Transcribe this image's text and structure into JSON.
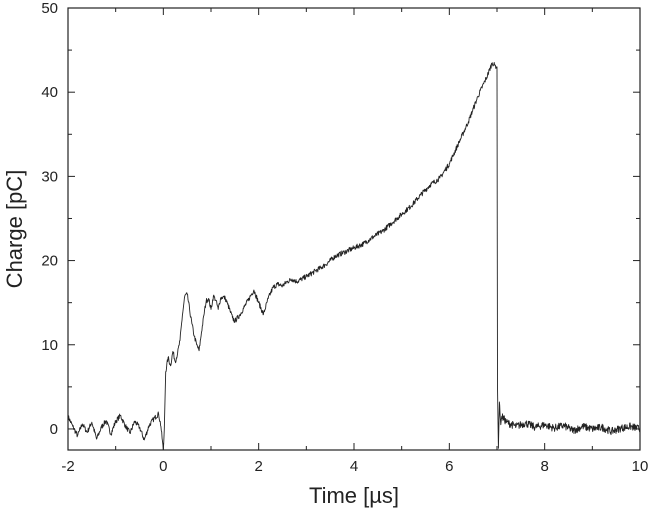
{
  "chart_data": {
    "type": "line",
    "title": "",
    "xlabel": "Time [µs]",
    "ylabel": "Charge [pC]",
    "xlim": [
      -2,
      10
    ],
    "ylim": [
      -2.5,
      50
    ],
    "x_ticks": [
      -2,
      0,
      2,
      4,
      6,
      8,
      10
    ],
    "x_tick_labels": [
      "-2",
      "0",
      "2",
      "4",
      "6",
      "8",
      "10"
    ],
    "y_ticks": [
      0,
      10,
      20,
      30,
      40,
      50
    ],
    "y_tick_labels": [
      "0",
      "10",
      "20",
      "30",
      "40",
      "50"
    ],
    "grid": false,
    "legend": "none",
    "line_color": "#222222",
    "series": [
      {
        "x": [
          -2.0,
          -1.9,
          -1.8,
          -1.7,
          -1.6,
          -1.5,
          -1.4,
          -1.3,
          -1.2,
          -1.1,
          -1.0,
          -0.9,
          -0.8,
          -0.7,
          -0.6,
          -0.5,
          -0.4,
          -0.3,
          -0.2,
          -0.1,
          -0.05,
          0.0,
          0.02,
          0.05,
          0.1,
          0.15,
          0.2,
          0.25,
          0.3,
          0.35,
          0.4,
          0.45,
          0.5,
          0.55,
          0.6,
          0.65,
          0.7,
          0.75,
          0.8,
          0.85,
          0.9,
          0.95,
          1.0,
          1.05,
          1.1,
          1.15,
          1.2,
          1.25,
          1.3,
          1.35,
          1.4,
          1.45,
          1.5,
          1.6,
          1.7,
          1.8,
          1.9,
          2.0,
          2.1,
          2.2,
          2.3,
          2.4,
          2.5,
          2.6,
          2.7,
          2.8,
          2.9,
          3.0,
          3.2,
          3.4,
          3.6,
          3.8,
          4.0,
          4.2,
          4.4,
          4.6,
          4.8,
          5.0,
          5.2,
          5.4,
          5.6,
          5.8,
          6.0,
          6.2,
          6.4,
          6.6,
          6.8,
          6.9,
          6.95,
          7.0,
          7.01,
          7.03,
          7.05,
          7.08,
          7.1,
          7.2,
          7.4,
          7.6,
          7.8,
          8.0,
          8.2,
          8.4,
          8.6,
          8.8,
          9.0,
          9.2,
          9.4,
          9.6,
          9.8,
          10.0
        ],
        "y": [
          1.5,
          0.3,
          -0.8,
          0.6,
          -0.4,
          0.8,
          -1.2,
          0.2,
          1.0,
          -0.6,
          0.9,
          1.6,
          0.4,
          -0.5,
          0.9,
          0.2,
          -1.3,
          0.4,
          1.2,
          1.8,
          0.3,
          -2.5,
          0.0,
          6.8,
          8.5,
          7.5,
          9.2,
          8.0,
          9.0,
          10.5,
          13.5,
          15.8,
          16.0,
          14.2,
          12.5,
          11.0,
          10.0,
          9.3,
          11.5,
          13.5,
          15.2,
          15.5,
          14.2,
          15.8,
          15.3,
          14.2,
          15.5,
          15.7,
          15.5,
          14.8,
          14.0,
          13.2,
          12.8,
          13.5,
          14.5,
          15.5,
          16.5,
          15.0,
          13.6,
          15.5,
          16.8,
          17.2,
          17.0,
          17.5,
          17.8,
          17.5,
          17.8,
          18.1,
          18.8,
          19.5,
          20.5,
          21.0,
          21.5,
          22.0,
          22.8,
          23.5,
          24.5,
          25.5,
          26.5,
          27.8,
          29.0,
          29.8,
          31.5,
          34.0,
          36.5,
          39.5,
          42.0,
          43.5,
          43.2,
          43.0,
          5.0,
          -2.3,
          3.2,
          0.5,
          1.5,
          0.8,
          0.3,
          0.7,
          0.2,
          0.5,
          0.1,
          0.4,
          -0.2,
          0.3,
          0.0,
          0.2,
          -0.3,
          0.1,
          0.3,
          0.0
        ]
      }
    ]
  }
}
